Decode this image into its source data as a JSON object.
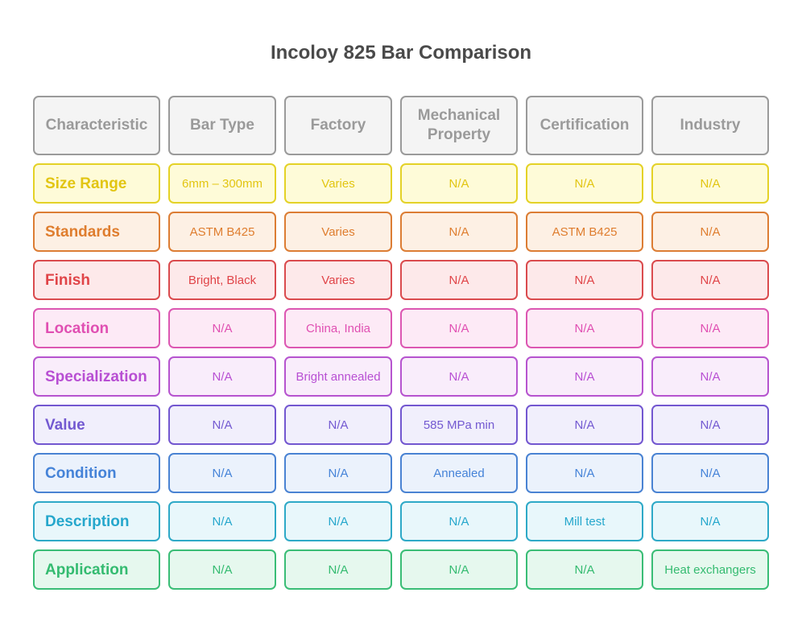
{
  "title": "Incoloy 825 Bar Comparison",
  "headers": [
    "Characteristic",
    "Bar Type",
    "Factory",
    "Mechanical Property",
    "Certification",
    "Industry"
  ],
  "rows": [
    {
      "label": "Size Range",
      "cells": [
        "6mm – 300mm",
        "Varies",
        "N/A",
        "N/A",
        "N/A"
      ],
      "colors": {
        "bg": "#fefbd8",
        "border": "#e4d227",
        "text": "#e2c512",
        "labelText": "#e2c512"
      }
    },
    {
      "label": "Standards",
      "cells": [
        "ASTM B425",
        "Varies",
        "N/A",
        "ASTM B425",
        "N/A"
      ],
      "colors": {
        "bg": "#fdf0e4",
        "border": "#dc7d34",
        "text": "#df7d2e",
        "labelText": "#df7d2e"
      }
    },
    {
      "label": "Finish",
      "cells": [
        "Bright, Black",
        "Varies",
        "N/A",
        "N/A",
        "N/A"
      ],
      "colors": {
        "bg": "#fde9ea",
        "border": "#da4b4e",
        "text": "#e04448",
        "labelText": "#e04448"
      }
    },
    {
      "label": "Location",
      "cells": [
        "N/A",
        "China, India",
        "N/A",
        "N/A",
        "N/A"
      ],
      "colors": {
        "bg": "#fdeaf6",
        "border": "#dc57b2",
        "text": "#e04fb2",
        "labelText": "#e04fb2"
      }
    },
    {
      "label": "Specialization",
      "cells": [
        "N/A",
        "Bright annealed",
        "N/A",
        "N/A",
        "N/A"
      ],
      "colors": {
        "bg": "#f9edfb",
        "border": "#b654cf",
        "text": "#b84fd3",
        "labelText": "#b84fd3"
      }
    },
    {
      "label": "Value",
      "cells": [
        "N/A",
        "N/A",
        "585 MPa min",
        "N/A",
        "N/A"
      ],
      "colors": {
        "bg": "#f1effc",
        "border": "#7357d0",
        "text": "#7359d1",
        "labelText": "#7359d1"
      }
    },
    {
      "label": "Condition",
      "cells": [
        "N/A",
        "N/A",
        "Annealed",
        "N/A",
        "N/A"
      ],
      "colors": {
        "bg": "#ebf2fc",
        "border": "#4a83d3",
        "text": "#4583d8",
        "labelText": "#4583d8"
      }
    },
    {
      "label": "Description",
      "cells": [
        "N/A",
        "N/A",
        "N/A",
        "Mill test",
        "N/A"
      ],
      "colors": {
        "bg": "#e8f7fb",
        "border": "#2ea9c7",
        "text": "#25a7cc",
        "labelText": "#25a7cc"
      }
    },
    {
      "label": "Application",
      "cells": [
        "N/A",
        "N/A",
        "N/A",
        "N/A",
        "Heat exchangers"
      ],
      "colors": {
        "bg": "#e6f8ee",
        "border": "#3abd76",
        "text": "#34bb70",
        "labelText": "#34bb70"
      }
    }
  ]
}
